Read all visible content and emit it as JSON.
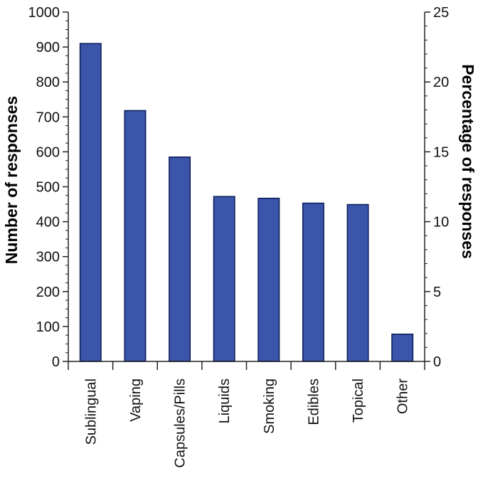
{
  "chart_data": {
    "type": "bar",
    "categories": [
      "Sublingual",
      "Vaping",
      "Capsules/Pills",
      "Liquids",
      "Smoking",
      "Edibles",
      "Topical",
      "Other"
    ],
    "values": [
      910,
      718,
      585,
      472,
      467,
      453,
      449,
      78
    ],
    "ylabel": "Number of responses",
    "ylim": [
      0,
      1000
    ],
    "yticks": [
      0,
      100,
      200,
      300,
      400,
      500,
      600,
      700,
      800,
      900,
      1000
    ],
    "y2label": "Percentage of responses",
    "y2lim": [
      0,
      25
    ],
    "y2ticks": [
      0,
      5,
      10,
      15,
      20,
      25
    ],
    "bar_color": "#3a55aa",
    "grid": false,
    "legend": "none"
  }
}
